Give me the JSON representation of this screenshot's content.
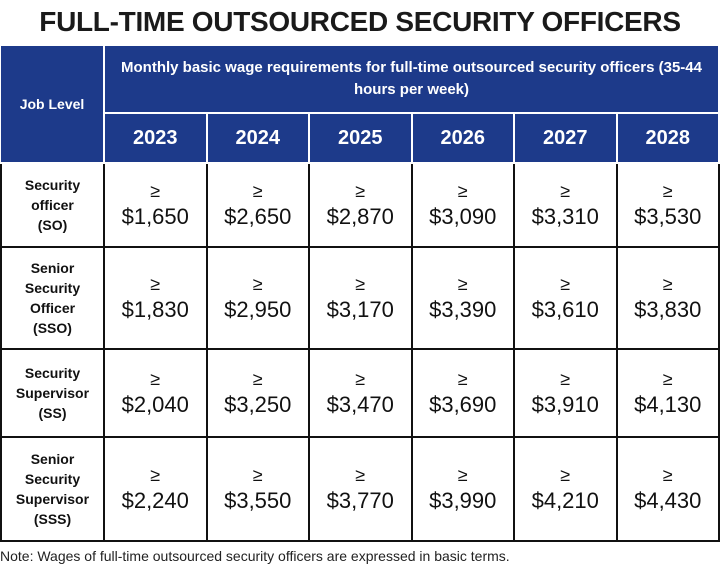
{
  "title": "FULL-TIME OUTSOURCED SECURITY OFFICERS",
  "table": {
    "corner": "Job Level",
    "group_header": "Monthly basic wage requirements for full-time outsourced security officers (35-44 hours per week)",
    "years": [
      "2023",
      "2024",
      "2025",
      "2026",
      "2027",
      "2028"
    ],
    "rows": [
      {
        "label": [
          "Security",
          "officer",
          "(SO)"
        ],
        "cells": [
          {
            "symbol": "≥",
            "amount": "$1,650"
          },
          {
            "symbol": "≥",
            "amount": "$2,650"
          },
          {
            "symbol": "≥",
            "amount": "$2,870"
          },
          {
            "symbol": "≥",
            "amount": "$3,090"
          },
          {
            "symbol": "≥",
            "amount": "$3,310"
          },
          {
            "symbol": "≥",
            "amount": "$3,530"
          }
        ]
      },
      {
        "label": [
          "Senior",
          "Security",
          "Officer",
          "(SSO)"
        ],
        "cells": [
          {
            "symbol": "≥",
            "amount": "$1,830"
          },
          {
            "symbol": "≥",
            "amount": "$2,950"
          },
          {
            "symbol": "≥",
            "amount": "$3,170"
          },
          {
            "symbol": "≥",
            "amount": "$3,390"
          },
          {
            "symbol": "≥",
            "amount": "$3,610"
          },
          {
            "symbol": "≥",
            "amount": "$3,830"
          }
        ]
      },
      {
        "label": [
          "Security",
          "Supervisor",
          "(SS)"
        ],
        "cells": [
          {
            "symbol": "≥",
            "amount": "$2,040"
          },
          {
            "symbol": "≥",
            "amount": "$3,250"
          },
          {
            "symbol": "≥",
            "amount": "$3,470"
          },
          {
            "symbol": "≥",
            "amount": "$3,690"
          },
          {
            "symbol": "≥",
            "amount": "$3,910"
          },
          {
            "symbol": "≥",
            "amount": "$4,130"
          }
        ]
      },
      {
        "label": [
          "Senior",
          "Security",
          "Supervisor",
          "(SSS)"
        ],
        "cells": [
          {
            "symbol": "≥",
            "amount": "$2,240"
          },
          {
            "symbol": "≥",
            "amount": "$3,550"
          },
          {
            "symbol": "≥",
            "amount": "$3,770"
          },
          {
            "symbol": "≥",
            "amount": "$3,990"
          },
          {
            "symbol": "≥",
            "amount": "$4,210"
          },
          {
            "symbol": "≥",
            "amount": "$4,430"
          }
        ]
      }
    ]
  },
  "note": "Note: Wages of full-time outsourced security officers are expressed in basic terms."
}
